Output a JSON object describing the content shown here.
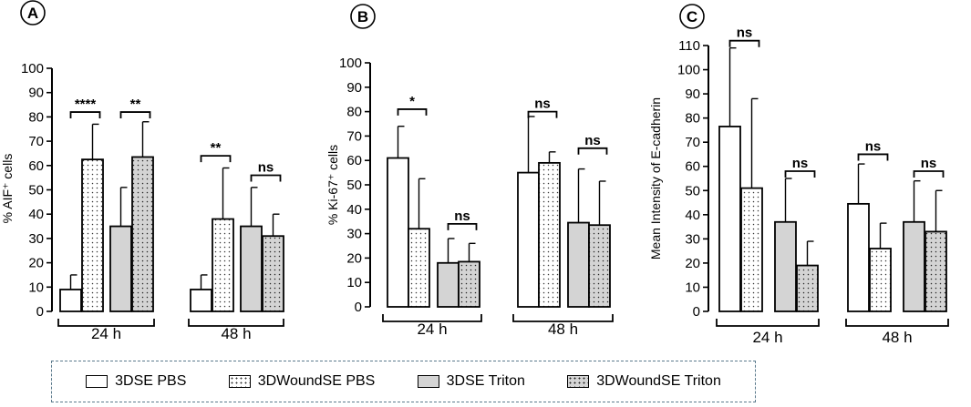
{
  "legend": {
    "items": [
      {
        "label": "3DSE PBS",
        "fill": "#ffffff",
        "pattern": "none"
      },
      {
        "label": "3DWoundSE PBS",
        "fill": "#ffffff",
        "pattern": "dots"
      },
      {
        "label": "3DSE Triton",
        "fill": "#d4d4d4",
        "pattern": "none"
      },
      {
        "label": "3DWoundSE Triton",
        "fill": "#d4d4d4",
        "pattern": "dots"
      }
    ]
  },
  "chart_data": [
    {
      "type": "bar",
      "panel": "A",
      "ylabel": "% AIF⁺ cells",
      "ylim": [
        0,
        100
      ],
      "yticks": [
        0,
        10,
        20,
        30,
        40,
        50,
        60,
        70,
        80,
        90,
        100
      ],
      "groups": [
        "24 h",
        "48 h"
      ],
      "series": [
        {
          "name": "3DSE PBS",
          "values": [
            9,
            9
          ],
          "err": [
            15,
            15
          ]
        },
        {
          "name": "3DWoundSE PBS",
          "values": [
            62.5,
            38
          ],
          "err": [
            77,
            59
          ]
        },
        {
          "name": "3DSE Triton",
          "values": [
            35,
            35
          ],
          "err": [
            51,
            51
          ]
        },
        {
          "name": "3DWoundSE Triton",
          "values": [
            63.5,
            31
          ],
          "err": [
            78,
            40
          ]
        }
      ],
      "brackets": [
        {
          "group": 0,
          "from": 0,
          "to": 1,
          "label": "****",
          "y": 82
        },
        {
          "group": 0,
          "from": 2,
          "to": 3,
          "label": "**",
          "y": 82
        },
        {
          "group": 1,
          "from": 0,
          "to": 1,
          "label": "**",
          "y": 64
        },
        {
          "group": 1,
          "from": 2,
          "to": 3,
          "label": "ns",
          "y": 56
        }
      ]
    },
    {
      "type": "bar",
      "panel": "B",
      "ylabel": "% Ki-67⁺ cells",
      "ylim": [
        0,
        100
      ],
      "yticks": [
        0,
        10,
        20,
        30,
        40,
        50,
        60,
        70,
        80,
        90,
        100
      ],
      "groups": [
        "24 h",
        "48 h"
      ],
      "series": [
        {
          "name": "3DSE PBS",
          "values": [
            61,
            55
          ],
          "err": [
            74,
            78
          ]
        },
        {
          "name": "3DWoundSE PBS",
          "values": [
            32,
            59
          ],
          "err": [
            52.5,
            63.5
          ]
        },
        {
          "name": "3DSE Triton",
          "values": [
            18,
            34.5
          ],
          "err": [
            28,
            56.5
          ]
        },
        {
          "name": "3DWoundSE Triton",
          "values": [
            18.5,
            33.5
          ],
          "err": [
            26,
            51.5
          ]
        }
      ],
      "brackets": [
        {
          "group": 0,
          "from": 0,
          "to": 1,
          "label": "*",
          "y": 81
        },
        {
          "group": 0,
          "from": 2,
          "to": 3,
          "label": "ns",
          "y": 34
        },
        {
          "group": 1,
          "from": 0,
          "to": 1,
          "label": "ns",
          "y": 80
        },
        {
          "group": 1,
          "from": 2,
          "to": 3,
          "label": "ns",
          "y": 65
        }
      ]
    },
    {
      "type": "bar",
      "panel": "C",
      "ylabel": "Mean Intensity of E-cadherin",
      "ylim": [
        0,
        110
      ],
      "yticks": [
        0,
        10,
        20,
        30,
        40,
        50,
        60,
        70,
        80,
        90,
        100,
        110
      ],
      "groups": [
        "24 h",
        "48 h"
      ],
      "series": [
        {
          "name": "3DSE PBS",
          "values": [
            76.5,
            44.5
          ],
          "err": [
            109,
            61
          ]
        },
        {
          "name": "3DWoundSE PBS",
          "values": [
            51,
            26
          ],
          "err": [
            88,
            36.5
          ]
        },
        {
          "name": "3DSE Triton",
          "values": [
            37,
            37
          ],
          "err": [
            55,
            54
          ]
        },
        {
          "name": "3DWoundSE Triton",
          "values": [
            19,
            33
          ],
          "err": [
            29,
            50
          ]
        }
      ],
      "brackets": [
        {
          "group": 0,
          "from": 0,
          "to": 1,
          "label": "ns",
          "y": 112
        },
        {
          "group": 0,
          "from": 2,
          "to": 3,
          "label": "ns",
          "y": 58
        },
        {
          "group": 1,
          "from": 0,
          "to": 1,
          "label": "ns",
          "y": 65
        },
        {
          "group": 1,
          "from": 2,
          "to": 3,
          "label": "ns",
          "y": 58
        }
      ]
    }
  ]
}
